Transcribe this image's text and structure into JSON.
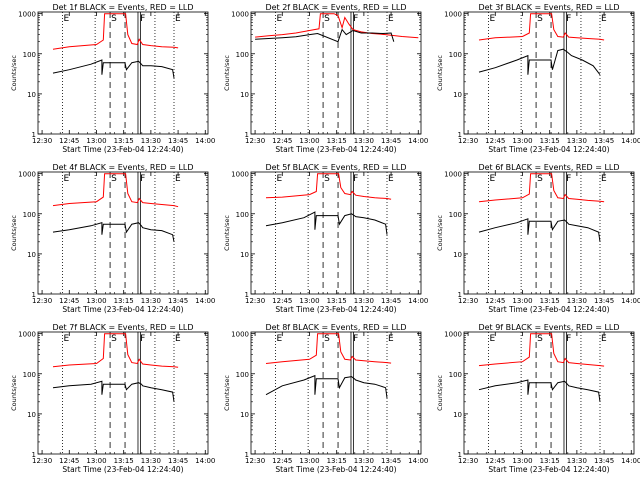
{
  "chart_data": {
    "type": "line",
    "grid": false,
    "xlabel": "Start Time (23-Feb-04 12:24:40)",
    "ylabel": "Counts/sec",
    "x_ticks": [
      "12:30",
      "12:45",
      "13:00",
      "13:15",
      "13:30",
      "13:45",
      "14:00"
    ],
    "y_ticks": [
      "1",
      "10",
      "100",
      "1000"
    ],
    "xlim": [
      -0.15,
      6.1
    ],
    "ylim": [
      1,
      1100
    ],
    "y_scale": "log",
    "colors": {
      "events": "#000000",
      "lld": "#ff0000",
      "axes": "#000000"
    },
    "markers": [
      {
        "x": 0.75,
        "style": "dotted",
        "label": "E"
      },
      {
        "x": 1.95,
        "style": "dotted",
        "label": ""
      },
      {
        "x": 2.5,
        "style": "dashed",
        "label": "S"
      },
      {
        "x": 3.05,
        "style": "dashed",
        "label": ""
      },
      {
        "x": 3.57,
        "style": "double",
        "label": "F"
      },
      {
        "x": 4.15,
        "style": "dotted",
        "label": ""
      },
      {
        "x": 4.85,
        "style": "dotted",
        "label": "E"
      }
    ],
    "panels": [
      {
        "title": "Det 1f BLACK = Events, RED = LLD",
        "series": [
          {
            "color": "#ff0000",
            "x": [
              0.4,
              1.0,
              2.0,
              2.25,
              2.3,
              2.5,
              2.8,
              3.07,
              3.15,
              3.3,
              3.5,
              3.57,
              3.7,
              4.0,
              4.4,
              4.85,
              5.0
            ],
            "y": [
              130,
              150,
              170,
              220,
              1000,
              1000,
              1000,
              1000,
              300,
              180,
              170,
              230,
              170,
              160,
              150,
              145,
              140
            ]
          },
          {
            "color": "#000000",
            "x": [
              0.4,
              1.0,
              1.8,
              2.2,
              2.2,
              2.25,
              3.05,
              3.1,
              3.3,
              3.55,
              3.65,
              3.7,
              4.0,
              4.4,
              4.8,
              4.85
            ],
            "y": [
              33,
              40,
              55,
              70,
              30,
              60,
              60,
              40,
              60,
              65,
              55,
              50,
              50,
              48,
              40,
              25
            ]
          }
        ]
      },
      {
        "title": "Det 2f BLACK = Events, RED = LLD",
        "series": [
          {
            "color": "#ff0000",
            "x": [
              0.0,
              0.5,
              1.0,
              1.5,
              2.0,
              2.35,
              2.4,
              2.6,
              2.9,
              3.05,
              3.2,
              3.3,
              3.45,
              3.6,
              3.9,
              4.3,
              4.8,
              5.4,
              6.0
            ],
            "y": [
              260,
              280,
              300,
              330,
              380,
              420,
              1000,
              1000,
              1000,
              900,
              450,
              800,
              550,
              400,
              350,
              320,
              300,
              270,
              250
            ]
          },
          {
            "color": "#000000",
            "x": [
              0.0,
              0.5,
              1.0,
              1.5,
              2.0,
              2.3,
              3.05,
              3.2,
              3.35,
              3.6,
              3.9,
              4.3,
              4.7,
              5.0,
              5.1
            ],
            "y": [
              230,
              240,
              250,
              265,
              300,
              320,
              200,
              400,
              300,
              380,
              330,
              330,
              320,
              330,
              200
            ]
          }
        ]
      },
      {
        "title": "Det 3f BLACK = Events, RED = LLD",
        "series": [
          {
            "color": "#ff0000",
            "x": [
              0.4,
              1.0,
              2.0,
              2.25,
              2.3,
              2.5,
              2.8,
              3.07,
              3.15,
              3.3,
              3.5,
              3.57,
              3.7,
              4.0,
              4.4,
              4.85,
              5.0
            ],
            "y": [
              220,
              250,
              270,
              330,
              1000,
              1000,
              1000,
              1000,
              400,
              270,
              260,
              330,
              260,
              250,
              240,
              230,
              220
            ]
          },
          {
            "color": "#000000",
            "x": [
              0.4,
              1.0,
              1.8,
              2.2,
              2.2,
              2.25,
              3.05,
              3.1,
              3.3,
              3.5,
              3.65,
              3.8,
              4.2,
              4.6,
              4.85
            ],
            "y": [
              35,
              45,
              70,
              90,
              30,
              70,
              70,
              40,
              120,
              130,
              110,
              90,
              70,
              50,
              30
            ]
          }
        ]
      },
      {
        "title": "Det 4f BLACK = Events, RED = LLD",
        "series": [
          {
            "color": "#ff0000",
            "x": [
              0.4,
              1.0,
              2.0,
              2.25,
              2.3,
              2.5,
              2.8,
              3.07,
              3.15,
              3.3,
              3.5,
              3.57,
              3.7,
              4.0,
              4.4,
              4.85,
              5.0
            ],
            "y": [
              160,
              180,
              200,
              260,
              1000,
              1000,
              1000,
              1000,
              320,
              200,
              190,
              240,
              190,
              180,
              170,
              160,
              150
            ]
          },
          {
            "color": "#000000",
            "x": [
              0.4,
              1.0,
              1.8,
              2.2,
              2.2,
              2.25,
              3.05,
              3.1,
              3.3,
              3.55,
              3.65,
              3.7,
              4.0,
              4.4,
              4.8,
              4.85
            ],
            "y": [
              35,
              40,
              50,
              60,
              30,
              55,
              55,
              35,
              55,
              60,
              50,
              45,
              40,
              38,
              30,
              20
            ]
          }
        ]
      },
      {
        "title": "Det 5f BLACK = Events, RED = LLD",
        "series": [
          {
            "color": "#ff0000",
            "x": [
              0.4,
              1.0,
              2.0,
              2.25,
              2.3,
              2.5,
              2.8,
              3.07,
              3.15,
              3.3,
              3.5,
              3.57,
              3.7,
              4.0,
              4.4,
              4.85,
              5.0
            ],
            "y": [
              250,
              260,
              300,
              360,
              1000,
              1000,
              1000,
              1000,
              450,
              320,
              300,
              360,
              290,
              270,
              250,
              240,
              230
            ]
          },
          {
            "color": "#000000",
            "x": [
              0.4,
              1.0,
              1.8,
              2.2,
              2.2,
              2.25,
              3.05,
              3.1,
              3.3,
              3.55,
              3.65,
              3.7,
              4.0,
              4.4,
              4.8,
              4.85
            ],
            "y": [
              50,
              60,
              80,
              110,
              40,
              90,
              90,
              55,
              90,
              100,
              90,
              85,
              80,
              70,
              55,
              30
            ]
          }
        ]
      },
      {
        "title": "Det 6f BLACK = Events, RED = LLD",
        "series": [
          {
            "color": "#ff0000",
            "x": [
              0.4,
              1.0,
              2.0,
              2.25,
              2.3,
              2.5,
              2.8,
              3.07,
              3.15,
              3.3,
              3.5,
              3.57,
              3.7,
              4.0,
              4.4,
              4.85,
              5.0
            ],
            "y": [
              200,
              220,
              250,
              310,
              1000,
              1000,
              1000,
              1000,
              380,
              250,
              240,
              300,
              240,
              230,
              215,
              205,
              200
            ]
          },
          {
            "color": "#000000",
            "x": [
              0.4,
              1.0,
              1.8,
              2.2,
              2.2,
              2.25,
              3.05,
              3.1,
              3.3,
              3.55,
              3.65,
              3.7,
              4.0,
              4.4,
              4.8,
              4.85
            ],
            "y": [
              35,
              45,
              60,
              75,
              30,
              65,
              65,
              40,
              65,
              70,
              60,
              55,
              50,
              45,
              35,
              20
            ]
          }
        ]
      },
      {
        "title": "Det 7f BLACK = Events, RED = LLD",
        "series": [
          {
            "color": "#ff0000",
            "x": [
              0.4,
              1.0,
              2.0,
              2.25,
              2.3,
              2.5,
              2.8,
              3.07,
              3.15,
              3.3,
              3.5,
              3.57,
              3.7,
              4.0,
              4.4,
              4.85,
              5.0
            ],
            "y": [
              150,
              165,
              180,
              240,
              1000,
              1000,
              1000,
              1000,
              300,
              190,
              180,
              230,
              175,
              165,
              155,
              150,
              145
            ]
          },
          {
            "color": "#000000",
            "x": [
              0.4,
              1.0,
              1.8,
              2.2,
              2.2,
              2.25,
              3.05,
              3.1,
              3.3,
              3.55,
              3.65,
              3.7,
              4.0,
              4.4,
              4.8,
              4.85
            ],
            "y": [
              45,
              50,
              55,
              65,
              30,
              55,
              55,
              40,
              55,
              60,
              55,
              50,
              45,
              40,
              35,
              20
            ]
          }
        ]
      },
      {
        "title": "Det 8f BLACK = Events, RED = LLD",
        "series": [
          {
            "color": "#ff0000",
            "x": [
              0.4,
              1.0,
              2.0,
              2.25,
              2.3,
              2.5,
              2.8,
              3.07,
              3.15,
              3.3,
              3.5,
              3.57,
              3.7,
              4.0,
              4.4,
              4.85,
              5.0
            ],
            "y": [
              180,
              200,
              230,
              290,
              1000,
              1000,
              1000,
              1000,
              350,
              230,
              220,
              270,
              220,
              210,
              200,
              190,
              185
            ]
          },
          {
            "color": "#000000",
            "x": [
              0.4,
              1.0,
              1.8,
              2.2,
              2.2,
              2.25,
              3.05,
              3.1,
              3.3,
              3.55,
              3.65,
              3.7,
              4.0,
              4.4,
              4.8,
              4.85
            ],
            "y": [
              30,
              50,
              70,
              90,
              30,
              75,
              75,
              45,
              80,
              85,
              75,
              70,
              60,
              55,
              45,
              25
            ]
          }
        ]
      },
      {
        "title": "Det 9f BLACK = Events, RED = LLD",
        "series": [
          {
            "color": "#ff0000",
            "x": [
              0.4,
              1.0,
              2.0,
              2.25,
              2.3,
              2.5,
              2.8,
              3.07,
              3.15,
              3.3,
              3.5,
              3.57,
              3.7,
              4.0,
              4.4,
              4.85,
              5.0
            ],
            "y": [
              160,
              175,
              200,
              260,
              1000,
              1000,
              1000,
              1000,
              320,
              200,
              190,
              240,
              190,
              180,
              170,
              160,
              155
            ]
          },
          {
            "color": "#000000",
            "x": [
              0.4,
              1.0,
              1.8,
              2.2,
              2.2,
              2.25,
              3.05,
              3.1,
              3.3,
              3.55,
              3.65,
              3.7,
              4.0,
              4.4,
              4.8,
              4.85
            ],
            "y": [
              40,
              50,
              60,
              70,
              30,
              60,
              60,
              40,
              60,
              65,
              55,
              50,
              45,
              40,
              35,
              20
            ]
          }
        ]
      }
    ]
  }
}
